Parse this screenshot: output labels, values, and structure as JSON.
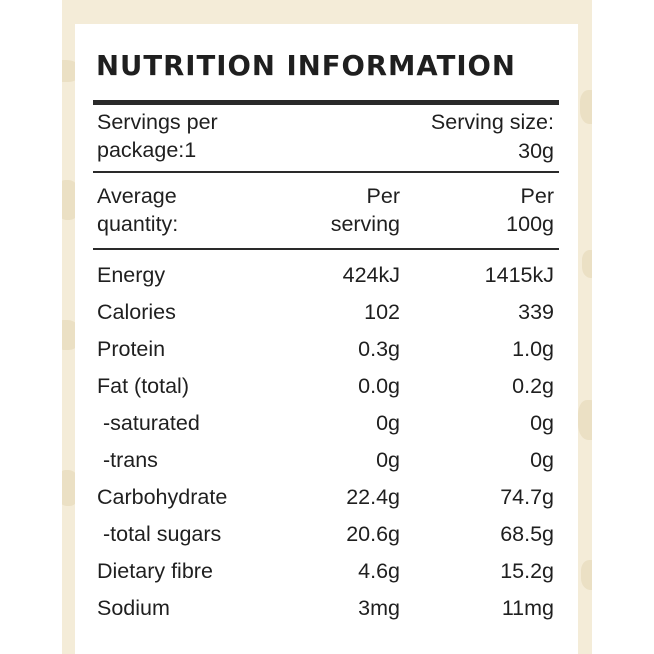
{
  "panel": {
    "title": "NUTRITION INFORMATION",
    "servings_per_package": [
      "Servings per",
      "package:1"
    ],
    "serving_size": [
      "Serving size:",
      "30g"
    ],
    "headers": {
      "quantity": [
        "Average",
        "quantity:"
      ],
      "per_serving": [
        "Per",
        "serving"
      ],
      "per_100g": [
        "Per",
        "100g"
      ]
    },
    "rows": [
      {
        "name": "Energy",
        "per_serving": "424kJ",
        "per_100g": "1415kJ"
      },
      {
        "name": "Calories",
        "per_serving": "102",
        "per_100g": "339"
      },
      {
        "name": "Protein",
        "per_serving": "0.3g",
        "per_100g": "1.0g"
      },
      {
        "name": "Fat (total)",
        "per_serving": "0.0g",
        "per_100g": "0.2g"
      },
      {
        "name": " -saturated",
        "per_serving": "0g",
        "per_100g": "0g"
      },
      {
        "name": " -trans",
        "per_serving": "0g",
        "per_100g": "0g"
      },
      {
        "name": "Carbohydrate",
        "per_serving": "22.4g",
        "per_100g": "74.7g"
      },
      {
        "name": " -total sugars",
        "per_serving": "20.6g",
        "per_100g": "68.5g"
      },
      {
        "name": "Dietary fibre",
        "per_serving": "4.6g",
        "per_100g": "15.2g"
      },
      {
        "name": "Sodium",
        "per_serving": "3mg",
        "per_100g": "11mg"
      }
    ]
  }
}
